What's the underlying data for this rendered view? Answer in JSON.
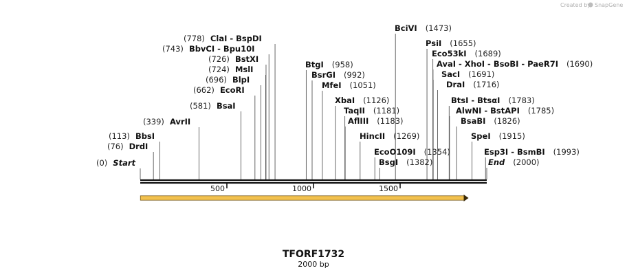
{
  "credit": {
    "created_by": "Created by",
    "brand": "SnapGene"
  },
  "sequence": {
    "name": "TFORF1732",
    "length_label": "2000 bp",
    "length": 2000
  },
  "axis": {
    "ticks": [
      500,
      1000,
      1500
    ],
    "tick_labels": [
      "500",
      "1000",
      "1500"
    ]
  },
  "feature": {
    "start": 1,
    "end": 1895,
    "direction": "forward",
    "color": "#f2c14e"
  },
  "sites": [
    {
      "names": [
        "Start"
      ],
      "pos_label": "(0)",
      "pos": 0,
      "italic": true
    },
    {
      "names": [
        "DrdI"
      ],
      "pos_label": "(76)",
      "pos": 76
    },
    {
      "names": [
        "BbsI"
      ],
      "pos_label": "(113)",
      "pos": 113
    },
    {
      "names": [
        "AvrII"
      ],
      "pos_label": "(339)",
      "pos": 339
    },
    {
      "names": [
        "BsaI"
      ],
      "pos_label": "(581)",
      "pos": 581
    },
    {
      "names": [
        "EcoRI"
      ],
      "pos_label": "(662)",
      "pos": 662
    },
    {
      "names": [
        "BlpI"
      ],
      "pos_label": "(696)",
      "pos": 696
    },
    {
      "names": [
        "MslI"
      ],
      "pos_label": "(724)",
      "pos": 724
    },
    {
      "names": [
        "BstXI"
      ],
      "pos_label": "(726)",
      "pos": 726
    },
    {
      "names": [
        "BbvCI",
        "Bpu10I"
      ],
      "pos_label": "(743)",
      "pos": 743
    },
    {
      "names": [
        "ClaI",
        "BspDI"
      ],
      "pos_label": "(778)",
      "pos": 778
    },
    {
      "names": [
        "BtgI"
      ],
      "pos_label": "(958)",
      "pos": 958
    },
    {
      "names": [
        "BsrGI"
      ],
      "pos_label": "(992)",
      "pos": 992
    },
    {
      "names": [
        "MfeI"
      ],
      "pos_label": "(1051)",
      "pos": 1051
    },
    {
      "names": [
        "XbaI"
      ],
      "pos_label": "(1126)",
      "pos": 1126
    },
    {
      "names": [
        "TaqII"
      ],
      "pos_label": "(1181)",
      "pos": 1181
    },
    {
      "names": [
        "AflIII"
      ],
      "pos_label": "(1183)",
      "pos": 1183
    },
    {
      "names": [
        "HincII"
      ],
      "pos_label": "(1269)",
      "pos": 1269
    },
    {
      "names": [
        "EcoO109I"
      ],
      "pos_label": "(1354)",
      "pos": 1354
    },
    {
      "names": [
        "BsgI"
      ],
      "pos_label": "(1382)",
      "pos": 1382
    },
    {
      "names": [
        "BciVI"
      ],
      "pos_label": "(1473)",
      "pos": 1473
    },
    {
      "names": [
        "PsiI"
      ],
      "pos_label": "(1655)",
      "pos": 1655
    },
    {
      "names": [
        "Eco53kI"
      ],
      "pos_label": "(1689)",
      "pos": 1689
    },
    {
      "names": [
        "AvaI",
        "XhoI",
        "BsoBI",
        "PaeR7I"
      ],
      "pos_label": "(1690)",
      "pos": 1690
    },
    {
      "names": [
        "SacI"
      ],
      "pos_label": "(1691)",
      "pos": 1691
    },
    {
      "names": [
        "DraI"
      ],
      "pos_label": "(1716)",
      "pos": 1716
    },
    {
      "names": [
        "BtsI",
        "BtsαI"
      ],
      "pos_label": "(1783)",
      "pos": 1783
    },
    {
      "names": [
        "AlwNI",
        "BstAPI"
      ],
      "pos_label": "(1785)",
      "pos": 1785
    },
    {
      "names": [
        "BsaBI"
      ],
      "pos_label": "(1826)",
      "pos": 1826
    },
    {
      "names": [
        "SpeI"
      ],
      "pos_label": "(1915)",
      "pos": 1915
    },
    {
      "names": [
        "Esp3I",
        "BsmBI"
      ],
      "pos_label": "(1993)",
      "pos": 1993
    },
    {
      "names": [
        "End"
      ],
      "pos_label": "(2000)",
      "pos": 2000,
      "italic": true
    }
  ]
}
